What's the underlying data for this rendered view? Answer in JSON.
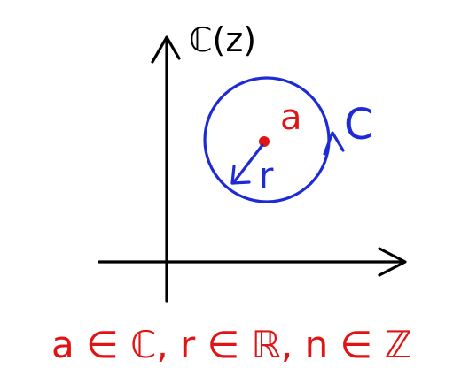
{
  "colors": {
    "axes": "#000000",
    "circle": "#1d2bd6",
    "center_point": "#e01414",
    "caption": "#e01414"
  },
  "labels": {
    "plane": "ℂ(z)",
    "center": "a",
    "radius": "r",
    "contour": "C",
    "caption": "a ∈ ℂ, r ∈ ℝ, n ∈ ℤ"
  }
}
